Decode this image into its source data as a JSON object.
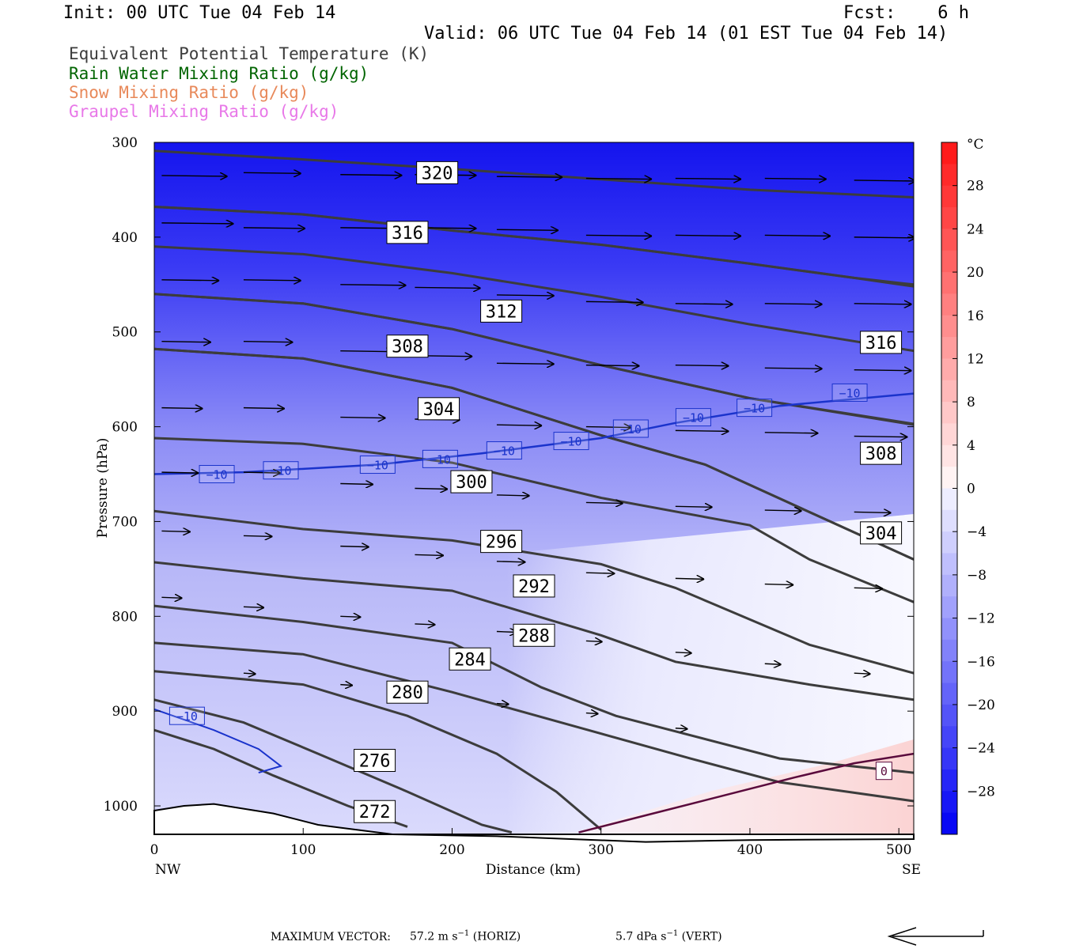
{
  "header": {
    "init": "Init: 00 UTC Tue 04 Feb 14",
    "fcst": "Fcst:    6 h",
    "valid": "Valid: 06 UTC Tue 04 Feb 14 (01 EST Tue 04 Feb 14)"
  },
  "fields": [
    {
      "label": "Equivalent Potential Temperature (K)",
      "color": "#3c3c3c"
    },
    {
      "label": "Rain Water Mixing Ratio (g/kg)",
      "color": "#006400"
    },
    {
      "label": "Snow Mixing Ratio (g/kg)",
      "color": "#e8895a"
    },
    {
      "label": "Graupel Mixing Ratio (g/kg)",
      "color": "#e878e8"
    }
  ],
  "colors": {
    "theta_line": "#3c3c3c",
    "isotherm": "#1a33cc",
    "freezing": "#5a0a3c",
    "vector": "#000000"
  },
  "chart_data": {
    "type": "contour",
    "title": "",
    "xlabel": "Distance (km)",
    "ylabel": "Pressure (hPa)",
    "xlim": [
      0,
      510
    ],
    "ylim": [
      1030,
      300
    ],
    "x_ticks": [
      "0",
      "100",
      "200",
      "300",
      "400",
      "500"
    ],
    "y_ticks": [
      "300",
      "400",
      "500",
      "600",
      "700",
      "800",
      "900",
      "1000"
    ],
    "x_end_labels": {
      "left": "NW",
      "right": "SE"
    },
    "colorbar": {
      "unit": "°C",
      "ticks": [
        "28",
        "24",
        "20",
        "16",
        "12",
        "8",
        "4",
        "0",
        "−4",
        "−8",
        "−12",
        "−16",
        "−20",
        "−24",
        "−28"
      ],
      "tick_values": [
        28,
        24,
        20,
        16,
        12,
        8,
        4,
        0,
        -4,
        -8,
        -12,
        -16,
        -20,
        -24,
        -28
      ],
      "range": [
        -32,
        32
      ]
    },
    "theta_e_contours": [
      {
        "label": "320",
        "points": [
          [
            0,
            309
          ],
          [
            100,
            318
          ],
          [
            200,
            328
          ],
          [
            300,
            339
          ],
          [
            400,
            350
          ],
          [
            510,
            358
          ]
        ],
        "label_at": [
          190,
          332
        ]
      },
      {
        "label": "316",
        "points": [
          [
            0,
            368
          ],
          [
            100,
            376
          ],
          [
            200,
            393
          ],
          [
            300,
            408
          ],
          [
            400,
            428
          ],
          [
            470,
            443
          ],
          [
            510,
            450
          ]
        ],
        "label_at": [
          170,
          395
        ]
      },
      {
        "label": "316",
        "points": [
          [
            0,
            368
          ],
          [
            100,
            376
          ],
          [
            200,
            393
          ],
          [
            300,
            408
          ],
          [
            400,
            428
          ],
          [
            470,
            443
          ],
          [
            510,
            452
          ]
        ],
        "label_at": [
          488,
          511
        ]
      },
      {
        "label": "312",
        "points": [
          [
            0,
            410
          ],
          [
            100,
            418
          ],
          [
            200,
            438
          ],
          [
            300,
            463
          ],
          [
            400,
            492
          ],
          [
            510,
            520
          ]
        ],
        "label_at": [
          233,
          478
        ]
      },
      {
        "label": "308",
        "points": [
          [
            0,
            460
          ],
          [
            100,
            470
          ],
          [
            200,
            497
          ],
          [
            300,
            535
          ],
          [
            400,
            570
          ],
          [
            510,
            597
          ]
        ],
        "label_at": [
          170,
          515
        ]
      },
      {
        "label": "308",
        "points": [
          [
            0,
            460
          ],
          [
            100,
            470
          ],
          [
            200,
            497
          ],
          [
            300,
            535
          ],
          [
            400,
            570
          ],
          [
            510,
            598
          ]
        ],
        "label_at": [
          488,
          628
        ]
      },
      {
        "label": "304",
        "points": [
          [
            0,
            518
          ],
          [
            100,
            528
          ],
          [
            200,
            559
          ],
          [
            300,
            609
          ],
          [
            370,
            640
          ],
          [
            440,
            690
          ],
          [
            510,
            740
          ]
        ],
        "label_at": [
          191,
          581
        ]
      },
      {
        "label": "304",
        "points": [
          [
            0,
            518
          ],
          [
            100,
            528
          ],
          [
            200,
            559
          ],
          [
            300,
            609
          ],
          [
            370,
            640
          ],
          [
            440,
            690
          ],
          [
            510,
            740
          ]
        ],
        "label_at": [
          488,
          712
        ]
      },
      {
        "label": "300",
        "points": [
          [
            0,
            612
          ],
          [
            100,
            618
          ],
          [
            200,
            638
          ],
          [
            300,
            675
          ],
          [
            400,
            704
          ],
          [
            440,
            740
          ],
          [
            510,
            785
          ]
        ],
        "label_at": [
          213,
          658
        ]
      },
      {
        "label": "296",
        "points": [
          [
            0,
            689
          ],
          [
            100,
            708
          ],
          [
            200,
            720
          ],
          [
            300,
            745
          ],
          [
            350,
            770
          ],
          [
            440,
            830
          ],
          [
            510,
            860
          ]
        ],
        "label_at": [
          233,
          721
        ]
      },
      {
        "label": "292",
        "points": [
          [
            0,
            743
          ],
          [
            100,
            760
          ],
          [
            200,
            773
          ],
          [
            300,
            820
          ],
          [
            350,
            848
          ],
          [
            440,
            872
          ],
          [
            510,
            888
          ]
        ],
        "label_at": [
          255,
          768
        ]
      },
      {
        "label": "288",
        "points": [
          [
            0,
            789
          ],
          [
            100,
            806
          ],
          [
            200,
            828
          ],
          [
            260,
            875
          ],
          [
            310,
            905
          ],
          [
            420,
            950
          ],
          [
            510,
            965
          ]
        ],
        "label_at": [
          255,
          820
        ]
      },
      {
        "label": "284",
        "points": [
          [
            0,
            828
          ],
          [
            100,
            840
          ],
          [
            200,
            880
          ],
          [
            280,
            915
          ],
          [
            360,
            950
          ],
          [
            420,
            975
          ],
          [
            510,
            995
          ]
        ],
        "label_at": [
          212,
          845
        ]
      },
      {
        "label": "280",
        "points": [
          [
            0,
            858
          ],
          [
            100,
            872
          ],
          [
            170,
            905
          ],
          [
            230,
            945
          ],
          [
            270,
            985
          ],
          [
            300,
            1025
          ]
        ],
        "label_at": [
          170,
          880
        ]
      },
      {
        "label": "276",
        "points": [
          [
            0,
            888
          ],
          [
            60,
            912
          ],
          [
            110,
            945
          ],
          [
            170,
            985
          ],
          [
            220,
            1020
          ],
          [
            240,
            1028
          ]
        ],
        "label_at": [
          148,
          952
        ]
      },
      {
        "label": "272",
        "points": [
          [
            0,
            920
          ],
          [
            40,
            940
          ],
          [
            80,
            968
          ],
          [
            130,
            1000
          ],
          [
            170,
            1022
          ]
        ],
        "label_at": [
          148,
          1006
        ]
      }
    ],
    "minus10_isotherm": {
      "points": [
        [
          0,
          650
        ],
        [
          60,
          648
        ],
        [
          150,
          640
        ],
        [
          220,
          628
        ],
        [
          300,
          612
        ],
        [
          350,
          596
        ],
        [
          420,
          578
        ],
        [
          510,
          565
        ]
      ],
      "labels_at": [
        [
          42,
          650
        ],
        [
          85,
          646
        ],
        [
          150,
          640
        ],
        [
          192,
          634
        ],
        [
          235,
          625
        ],
        [
          280,
          615
        ],
        [
          320,
          602
        ],
        [
          362,
          590
        ],
        [
          403,
          580
        ],
        [
          467,
          564
        ]
      ]
    },
    "minus10_isotherm_low": {
      "points": [
        [
          0,
          898
        ],
        [
          40,
          920
        ],
        [
          70,
          940
        ],
        [
          85,
          958
        ],
        [
          70,
          965
        ]
      ],
      "label_at": [
        22,
        905
      ]
    },
    "zero_isotherm": {
      "points": [
        [
          285,
          1028
        ],
        [
          330,
          1010
        ],
        [
          380,
          990
        ],
        [
          430,
          970
        ],
        [
          470,
          955
        ],
        [
          510,
          945
        ]
      ],
      "label_at": [
        490,
        963
      ]
    },
    "terrain": {
      "points": [
        [
          0,
          1005
        ],
        [
          20,
          1000
        ],
        [
          40,
          998
        ],
        [
          80,
          1008
        ],
        [
          110,
          1020
        ],
        [
          160,
          1030
        ],
        [
          230,
          1032
        ],
        [
          330,
          1038
        ],
        [
          400,
          1036
        ],
        [
          510,
          1035
        ]
      ]
    },
    "temperature_field_note": "shaded °C field, coldest aloft, warming toward lower right",
    "wind_vectors": [
      [
        5,
        335,
        32
      ],
      [
        60,
        332,
        28
      ],
      [
        125,
        334,
        30
      ],
      [
        175,
        334,
        30
      ],
      [
        230,
        336,
        32
      ],
      [
        290,
        338,
        32
      ],
      [
        350,
        338,
        32
      ],
      [
        410,
        338,
        30
      ],
      [
        470,
        340,
        30
      ],
      [
        5,
        385,
        35
      ],
      [
        60,
        390,
        30
      ],
      [
        125,
        390,
        30
      ],
      [
        175,
        390,
        30
      ],
      [
        230,
        392,
        30
      ],
      [
        290,
        398,
        32
      ],
      [
        350,
        398,
        32
      ],
      [
        410,
        398,
        32
      ],
      [
        470,
        400,
        30
      ],
      [
        5,
        445,
        28
      ],
      [
        60,
        445,
        28
      ],
      [
        125,
        450,
        32
      ],
      [
        175,
        453,
        32
      ],
      [
        230,
        461,
        28
      ],
      [
        290,
        468,
        28
      ],
      [
        350,
        470,
        28
      ],
      [
        410,
        470,
        28
      ],
      [
        470,
        470,
        28
      ],
      [
        5,
        510,
        24
      ],
      [
        60,
        510,
        24
      ],
      [
        125,
        520,
        26
      ],
      [
        175,
        525,
        28
      ],
      [
        230,
        533,
        28
      ],
      [
        290,
        535,
        26
      ],
      [
        350,
        535,
        26
      ],
      [
        410,
        538,
        28
      ],
      [
        470,
        540,
        28
      ],
      [
        5,
        580,
        20
      ],
      [
        60,
        580,
        20
      ],
      [
        125,
        590,
        22
      ],
      [
        175,
        592,
        22
      ],
      [
        230,
        598,
        22
      ],
      [
        290,
        600,
        22
      ],
      [
        350,
        604,
        26
      ],
      [
        410,
        606,
        26
      ],
      [
        470,
        610,
        26
      ],
      [
        5,
        648,
        18
      ],
      [
        60,
        648,
        18
      ],
      [
        125,
        660,
        16
      ],
      [
        175,
        665,
        16
      ],
      [
        230,
        672,
        16
      ],
      [
        290,
        680,
        18
      ],
      [
        350,
        684,
        18
      ],
      [
        410,
        688,
        18
      ],
      [
        470,
        690,
        18
      ],
      [
        5,
        710,
        14
      ],
      [
        60,
        715,
        14
      ],
      [
        125,
        726,
        14
      ],
      [
        175,
        735,
        14
      ],
      [
        230,
        742,
        14
      ],
      [
        290,
        754,
        14
      ],
      [
        350,
        760,
        14
      ],
      [
        410,
        766,
        14
      ],
      [
        470,
        770,
        14
      ],
      [
        5,
        780,
        10
      ],
      [
        60,
        790,
        10
      ],
      [
        125,
        800,
        10
      ],
      [
        175,
        808,
        10
      ],
      [
        230,
        816,
        10
      ],
      [
        290,
        826,
        8
      ],
      [
        350,
        838,
        8
      ],
      [
        410,
        850,
        8
      ],
      [
        470,
        860,
        8
      ],
      [
        60,
        860,
        6
      ],
      [
        125,
        872,
        6
      ],
      [
        175,
        880,
        6
      ],
      [
        230,
        892,
        6
      ],
      [
        290,
        902,
        6
      ],
      [
        350,
        918,
        6
      ]
    ]
  },
  "footer": {
    "max_vector_label": "MAXIMUM VECTOR:",
    "horiz_value": "57.2 m s",
    "horiz_unit": "(HORIZ)",
    "vert_value": "5.7 dPa s",
    "vert_unit": "(VERT)"
  }
}
